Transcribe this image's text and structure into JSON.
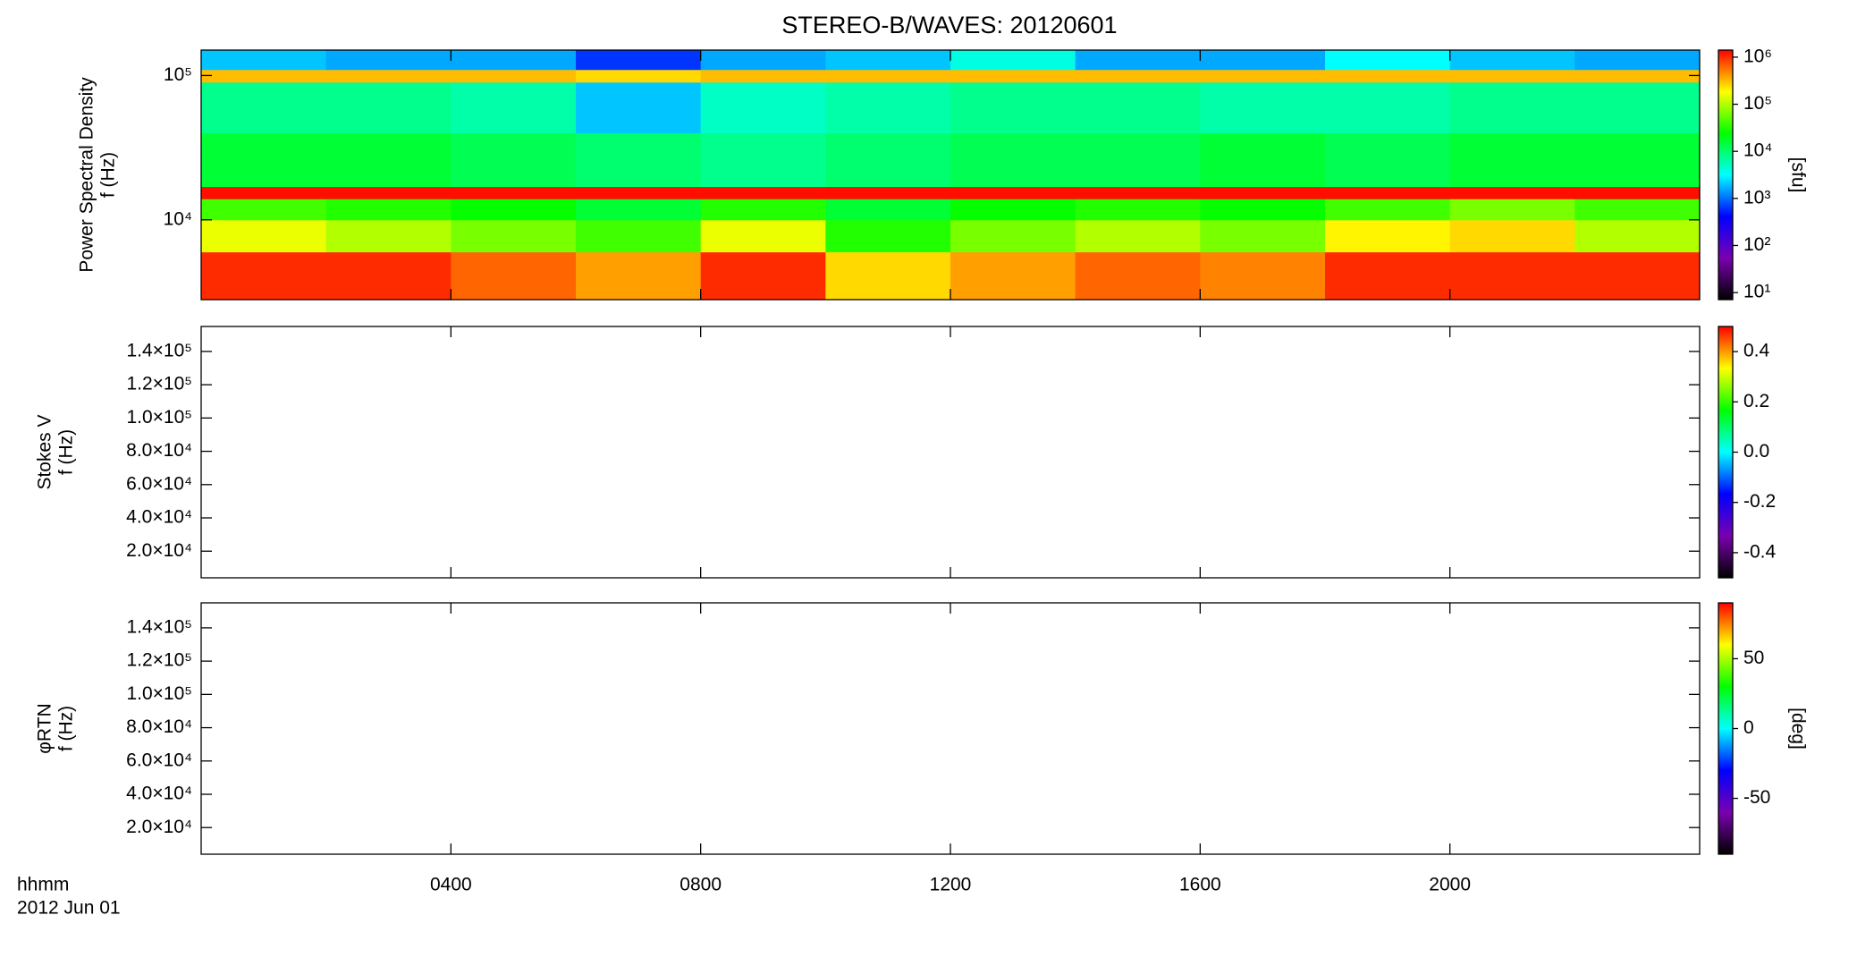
{
  "chart_data": [
    {
      "type": "spectrogram",
      "title": "STEREO-B/WAVES: 20120601",
      "ylabel": [
        "Power Spectral Density",
        "f (Hz)"
      ],
      "ylog": true,
      "xlim": [
        0,
        24
      ],
      "ylim": [
        2800,
        150000
      ],
      "yticks": [
        {
          "value": 10000,
          "label": "10⁴"
        },
        {
          "value": 100000,
          "label": "10⁵"
        }
      ],
      "t_edges": [
        0,
        2,
        4,
        6,
        8,
        10,
        12,
        14,
        16,
        18,
        20,
        22,
        24
      ],
      "f_edges": [
        2800,
        6000,
        10000,
        14000,
        17000,
        40000,
        90000,
        110000,
        150000
      ],
      "z": [
        [
          6,
          6,
          5.8,
          5.6,
          6,
          5.4,
          5.6,
          5.8,
          5.7,
          6,
          6,
          6
        ],
        [
          5.2,
          5,
          4.8,
          4.6,
          5.2,
          4.5,
          4.8,
          5,
          4.8,
          5.3,
          5.4,
          5
        ],
        [
          4.6,
          4.5,
          4.4,
          4.2,
          4.5,
          4.2,
          4.4,
          4.5,
          4.4,
          4.6,
          4.8,
          4.6
        ],
        [
          6.1,
          6.1,
          6.1,
          6.1,
          6.1,
          6.1,
          6.1,
          6.1,
          6.1,
          6.1,
          6.1,
          6.1
        ],
        [
          4.2,
          4.2,
          4.1,
          4,
          3.9,
          4,
          4.1,
          4.1,
          4.2,
          4.1,
          4.2,
          4.2
        ],
        [
          3.9,
          3.9,
          3.8,
          3.3,
          3.7,
          3.8,
          3.9,
          3.9,
          3.8,
          3.8,
          3.9,
          3.9
        ],
        [
          5.5,
          5.5,
          5.5,
          5.4,
          5.5,
          5.5,
          5.5,
          5.5,
          5.5,
          5.5,
          5.5,
          5.5
        ],
        [
          3.3,
          3.2,
          3.2,
          2.8,
          3.2,
          3.3,
          3.6,
          3.2,
          3.2,
          3.5,
          3.3,
          3.2
        ]
      ],
      "colormap": [
        "#000000",
        "#7a00b0",
        "#0000ff",
        "#00ffff",
        "#00ff00",
        "#ffff00",
        "#ff0000"
      ],
      "clim": [
        0.85,
        6.15
      ],
      "cticks": [
        {
          "value": 1,
          "label": "10¹"
        },
        {
          "value": 2,
          "label": "10²"
        },
        {
          "value": 3,
          "label": "10³"
        },
        {
          "value": 4,
          "label": "10⁴"
        },
        {
          "value": 5,
          "label": "10⁵"
        },
        {
          "value": 6,
          "label": "10⁶"
        }
      ],
      "clabel": "[sfu]"
    },
    {
      "type": "spectrogram",
      "ylabel": [
        "Stokes V",
        "f (Hz)"
      ],
      "ylog": false,
      "xlim": [
        0,
        24
      ],
      "ylim": [
        4000,
        155000
      ],
      "yticks": [
        {
          "value": 20000,
          "label": "2.0×10⁴"
        },
        {
          "value": 40000,
          "label": "4.0×10⁴"
        },
        {
          "value": 60000,
          "label": "6.0×10⁴"
        },
        {
          "value": 80000,
          "label": "8.0×10⁴"
        },
        {
          "value": 100000,
          "label": "1.0×10⁵"
        },
        {
          "value": 120000,
          "label": "1.2×10⁵"
        },
        {
          "value": 140000,
          "label": "1.4×10⁵"
        }
      ],
      "colormap": [
        "#000000",
        "#7a00b0",
        "#0000ff",
        "#00ffff",
        "#00ff00",
        "#ffff00",
        "#ff0000"
      ],
      "clim": [
        -0.5,
        0.5
      ],
      "cticks": [
        -0.4,
        -0.2,
        {
          "value": 0,
          "label": "0.0"
        },
        0.2,
        0.4
      ]
    },
    {
      "type": "spectrogram",
      "ylabel": [
        "φRTN",
        "f (Hz)"
      ],
      "ylog": false,
      "xlim": [
        0,
        24
      ],
      "ylim": [
        4000,
        155000
      ],
      "yticks": [
        {
          "value": 20000,
          "label": "2.0×10⁴"
        },
        {
          "value": 40000,
          "label": "4.0×10⁴"
        },
        {
          "value": 60000,
          "label": "6.0×10⁴"
        },
        {
          "value": 80000,
          "label": "8.0×10⁴"
        },
        {
          "value": 100000,
          "label": "1.0×10⁵"
        },
        {
          "value": 120000,
          "label": "1.2×10⁵"
        },
        {
          "value": 140000,
          "label": "1.4×10⁵"
        }
      ],
      "colormap": [
        "#000000",
        "#7a00b0",
        "#0000ff",
        "#00ffff",
        "#00ff00",
        "#ffff00",
        "#ff0000"
      ],
      "clim": [
        -90,
        90
      ],
      "cticks": [
        -50,
        0,
        50
      ],
      "clabel": "[deg]",
      "xticks": [
        {
          "value": 4,
          "label": "0400"
        },
        {
          "value": 8,
          "label": "0800"
        },
        {
          "value": 12,
          "label": "1200"
        },
        {
          "value": 16,
          "label": "1600"
        },
        {
          "value": 20,
          "label": "2000"
        }
      ],
      "xlabel": "hhmm",
      "date": "2012 Jun 01"
    }
  ]
}
